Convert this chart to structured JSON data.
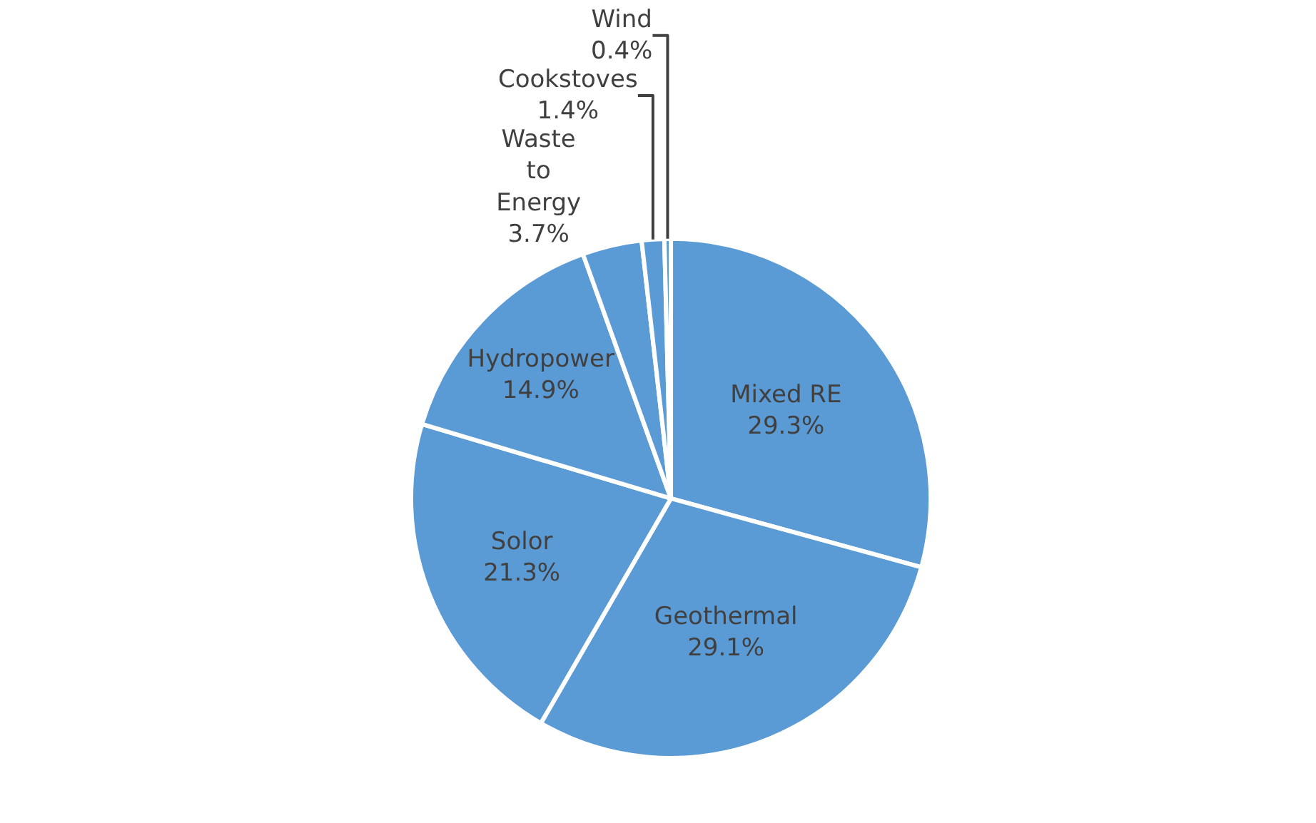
{
  "chart_data": {
    "type": "pie",
    "categories": [
      "Mixed RE",
      "Geothermal",
      "Solor",
      "Hydropower",
      "Waste to Energy",
      "Cookstoves",
      "Wind"
    ],
    "values": [
      29.3,
      29.1,
      21.3,
      14.9,
      3.7,
      1.4,
      0.4
    ],
    "value_labels": [
      "29.3%",
      "29.1%",
      "21.3%",
      "14.9%",
      "3.7%",
      "1.4%",
      "0.4%"
    ],
    "colors": [
      "#5b9bd5",
      "#5b9bd5",
      "#5b9bd5",
      "#5b9bd5",
      "#5b9bd5",
      "#5b9bd5",
      "#5b9bd5"
    ],
    "legend": false
  }
}
